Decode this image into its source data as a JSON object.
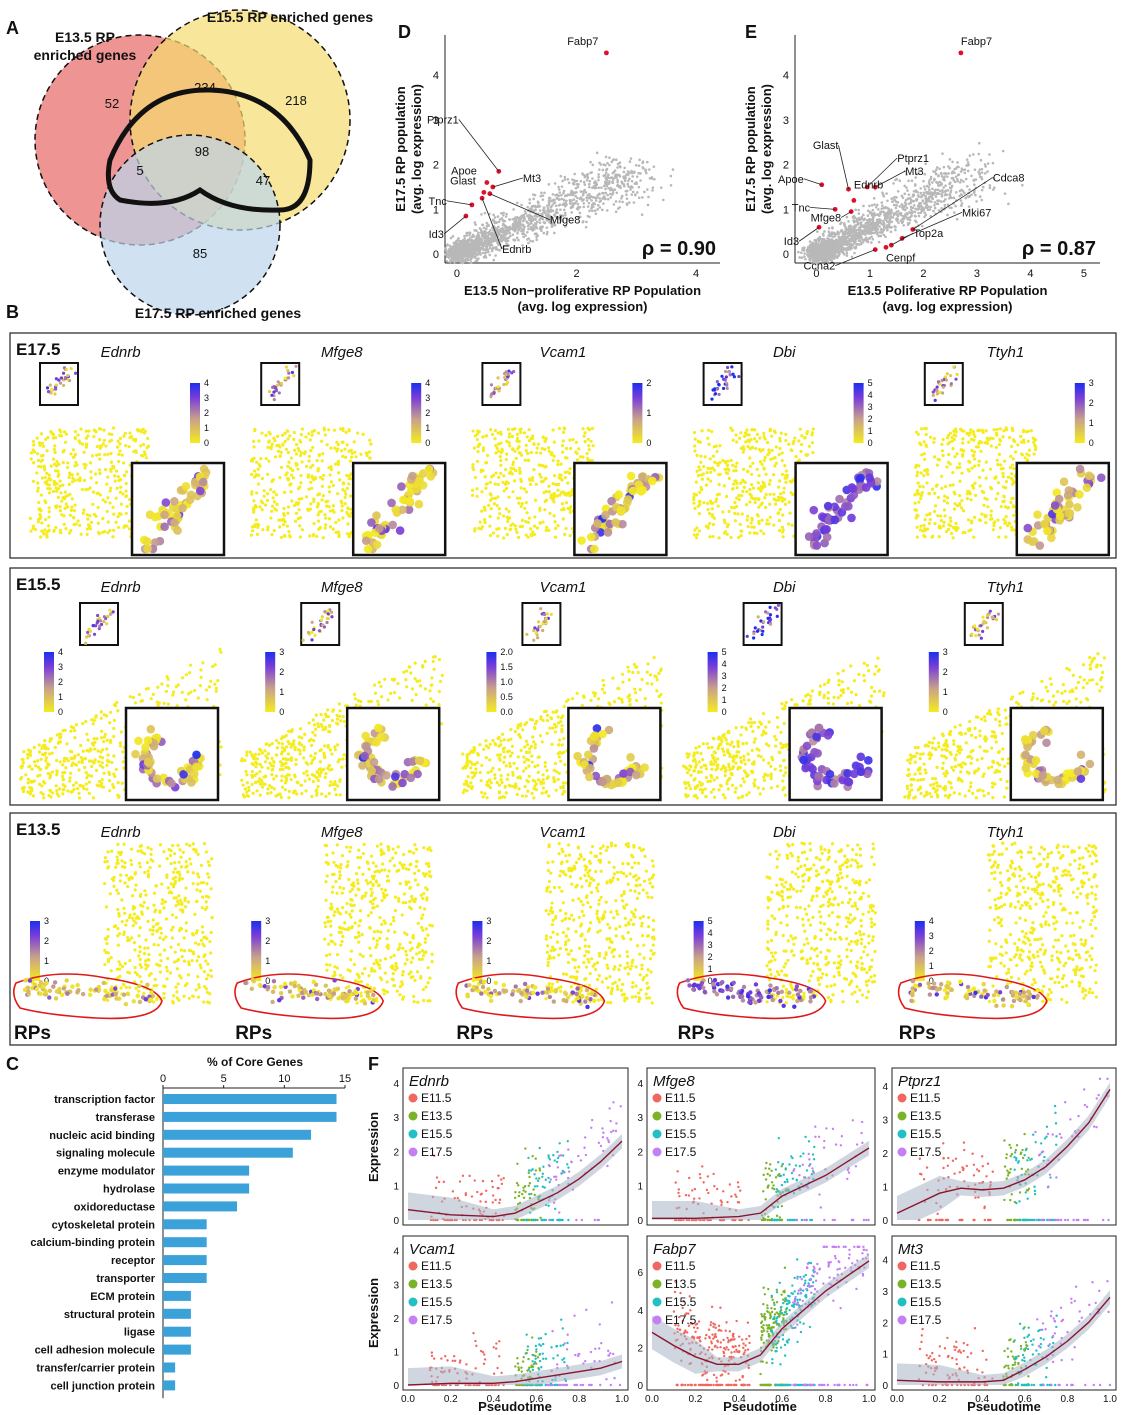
{
  "panel_letters": {
    "A": "A",
    "B": "B",
    "C": "C",
    "D": "D",
    "E": "E",
    "F": "F"
  },
  "colors": {
    "e13": "#e8706e",
    "e15": "#f5dc70",
    "e17": "#bcd6ec",
    "ring": "#111111",
    "bar": "#3aa2d8",
    "hi": "#e0102a",
    "low": "#f5ec1e",
    "mid": "#c8a08c",
    "high": "#7a3ed8",
    "top": "#1c2ef0",
    "rp_outline": "#e01818",
    "curve": "#8a1530",
    "band": "#a8b4c4",
    "gray": "#b8b8b8"
  },
  "venn": {
    "label_e13": "E13.5 RP\nenriched genes",
    "label_e15": "E15.5 RP enriched genes",
    "label_e17": "E17.5 RP enriched genes",
    "counts": {
      "e13_only": "52",
      "e13_e15": "234",
      "e15_only": "218",
      "core": "98",
      "e13_e17": "5",
      "e15_e17": "47",
      "e17_only": "85"
    }
  },
  "panel_b": {
    "rows": [
      {
        "stage": "E17.5",
        "genes": [
          "Ednrb",
          "Mfge8",
          "Vcam1",
          "Dbi",
          "Ttyh1"
        ],
        "scales": [
          [
            "4",
            "3",
            "2",
            "1",
            "0"
          ],
          [
            "4",
            "3",
            "2",
            "1",
            "0"
          ],
          [
            "2",
            "1",
            "0"
          ],
          [
            "5",
            "4",
            "3",
            "2",
            "1",
            "0"
          ],
          [
            "3",
            "2",
            "1",
            "0"
          ]
        ]
      },
      {
        "stage": "E15.5",
        "genes": [
          "Ednrb",
          "Mfge8",
          "Vcam1",
          "Dbi",
          "Ttyh1"
        ],
        "scales": [
          [
            "4",
            "3",
            "2",
            "1",
            "0"
          ],
          [
            "3",
            "2",
            "1",
            "0"
          ],
          [
            "2.0",
            "1.5",
            "1.0",
            "0.5",
            "0.0"
          ],
          [
            "5",
            "4",
            "3",
            "2",
            "1",
            "0"
          ],
          [
            "3",
            "2",
            "1",
            "0"
          ]
        ]
      },
      {
        "stage": "E13.5",
        "genes": [
          "Ednrb",
          "Mfge8",
          "Vcam1",
          "Dbi",
          "Ttyh1"
        ],
        "scales": [
          [
            "3",
            "2",
            "1",
            "0"
          ],
          [
            "3",
            "2",
            "1",
            "0"
          ],
          [
            "3",
            "2",
            "1",
            "0"
          ],
          [
            "5",
            "4",
            "3",
            "2",
            "1",
            "0"
          ],
          [
            "4",
            "3",
            "2",
            "1",
            "0"
          ]
        ],
        "rp_label": "RPs"
      }
    ]
  },
  "chart_data": [
    {
      "type": "bar",
      "panel": "C",
      "orientation": "horizontal",
      "title": "% of Core Genes",
      "categories": [
        "transcription factor",
        "transferase",
        "nucleic acid binding",
        "signaling molecule",
        "enzyme modulator",
        "hydrolase",
        "oxidoreductase",
        "cytoskeletal protein",
        "calcium-binding protein",
        "receptor",
        "transporter",
        "ECM protein",
        "structural protein",
        "ligase",
        "cell adhesion molecule",
        "transfer/carrier protein",
        "cell junction protein"
      ],
      "values": [
        14.3,
        14.3,
        12.2,
        10.7,
        7.1,
        7.1,
        6.1,
        3.6,
        3.6,
        3.6,
        3.6,
        2.3,
        2.3,
        2.3,
        2.3,
        1.0,
        1.0
      ],
      "xlim": [
        0,
        15
      ],
      "xticks": [
        "0",
        "5",
        "10",
        "15"
      ]
    },
    {
      "type": "scatter",
      "panel": "D",
      "rho": "ρ = 0.90",
      "xlabel": "E13.5 Non−proliferative RP Population\n(avg. log expression)",
      "ylabel": "E17.5 RP population\n(avg. log expression)",
      "xlim": [
        -0.2,
        4.4
      ],
      "ylim": [
        -0.2,
        4.9
      ],
      "xticks": [
        "0",
        "2",
        "4"
      ],
      "yticks": [
        "0",
        "1",
        "2",
        "3",
        "4"
      ],
      "labeled_points": [
        {
          "name": "Fabp7",
          "x": 2.5,
          "y": 4.5
        },
        {
          "name": "Ptprz1",
          "x": 0.7,
          "y": 1.85
        },
        {
          "name": "Apoe",
          "x": 0.5,
          "y": 1.6
        },
        {
          "name": "Mt3",
          "x": 0.6,
          "y": 1.5
        },
        {
          "name": "Glast",
          "x": 0.45,
          "y": 1.38
        },
        {
          "name": "Tnc",
          "x": 0.25,
          "y": 1.1
        },
        {
          "name": "Id3",
          "x": 0.15,
          "y": 0.85
        },
        {
          "name": "Mfge8",
          "x": 0.55,
          "y": 1.35
        },
        {
          "name": "Ednrb",
          "x": 0.42,
          "y": 1.25
        }
      ]
    },
    {
      "type": "scatter",
      "panel": "E",
      "rho": "ρ = 0.87",
      "xlabel": "E13.5 Poliferative RP Population\n(avg. log expression)",
      "ylabel": "E17.5 RP population\n(avg. log expression)",
      "xlim": [
        -0.4,
        5.3
      ],
      "ylim": [
        -0.2,
        4.9
      ],
      "xticks": [
        "0",
        "1",
        "2",
        "3",
        "4",
        "5"
      ],
      "yticks": [
        "0",
        "1",
        "2",
        "3",
        "4"
      ],
      "labeled_points": [
        {
          "name": "Fabp7",
          "x": 2.7,
          "y": 4.5
        },
        {
          "name": "Glast",
          "x": 0.6,
          "y": 1.45
        },
        {
          "name": "Ptprz1",
          "x": 0.95,
          "y": 1.5
        },
        {
          "name": "Apoe",
          "x": 0.1,
          "y": 1.55
        },
        {
          "name": "Mt3",
          "x": 1.1,
          "y": 1.5
        },
        {
          "name": "Ednrb",
          "x": 0.7,
          "y": 1.2
        },
        {
          "name": "Tnc",
          "x": 0.35,
          "y": 1.0
        },
        {
          "name": "Mfge8",
          "x": 0.65,
          "y": 0.95
        },
        {
          "name": "Id3",
          "x": 0.05,
          "y": 0.6
        },
        {
          "name": "Cdca8",
          "x": 1.8,
          "y": 0.55
        },
        {
          "name": "Mki67",
          "x": 1.6,
          "y": 0.35
        },
        {
          "name": "Top2a",
          "x": 1.4,
          "y": 0.2
        },
        {
          "name": "Cenpf",
          "x": 1.3,
          "y": 0.15
        },
        {
          "name": "Ccna2",
          "x": 1.1,
          "y": 0.1
        }
      ]
    },
    {
      "type": "scatter",
      "panel": "F",
      "xlabel": "Pseudotime",
      "ylabel": "Expression",
      "legend": [
        "E11.5",
        "E13.5",
        "E15.5",
        "E17.5"
      ],
      "legend_colors": [
        "#f0675f",
        "#7ab328",
        "#22bfc4",
        "#c57ff5"
      ],
      "xticks": [
        "0.0",
        "0.2",
        "0.4",
        "0.6",
        "0.8",
        "1.0"
      ],
      "subplots": [
        {
          "gene": "Ednrb",
          "yticks": [
            "0",
            "1",
            "2",
            "3",
            "4"
          ],
          "ymax": 4.2,
          "trend": [
            [
              0,
              0.3
            ],
            [
              0.2,
              0.15
            ],
            [
              0.4,
              0.1
            ],
            [
              0.5,
              0.2
            ],
            [
              0.6,
              0.5
            ],
            [
              0.7,
              0.8
            ],
            [
              0.8,
              1.2
            ],
            [
              0.9,
              1.7
            ],
            [
              1.0,
              2.3
            ]
          ]
        },
        {
          "gene": "Mfge8",
          "yticks": [
            "0",
            "1",
            "2",
            "3",
            "4"
          ],
          "ymax": 4.2,
          "trend": [
            [
              0,
              0.05
            ],
            [
              0.2,
              0.05
            ],
            [
              0.4,
              0.1
            ],
            [
              0.5,
              0.2
            ],
            [
              0.6,
              0.7
            ],
            [
              0.7,
              1.0
            ],
            [
              0.8,
              1.3
            ],
            [
              0.9,
              1.7
            ],
            [
              1.0,
              2.1
            ]
          ]
        },
        {
          "gene": "Ptprz1",
          "yticks": [
            "0",
            "1",
            "2",
            "3",
            "4"
          ],
          "ymax": 4.3,
          "trend": [
            [
              0,
              0.2
            ],
            [
              0.1,
              0.5
            ],
            [
              0.2,
              0.8
            ],
            [
              0.3,
              0.95
            ],
            [
              0.4,
              0.9
            ],
            [
              0.5,
              0.95
            ],
            [
              0.6,
              1.2
            ],
            [
              0.7,
              1.6
            ],
            [
              0.8,
              2.2
            ],
            [
              0.9,
              2.9
            ],
            [
              1.0,
              3.9
            ]
          ]
        },
        {
          "gene": "Vcam1",
          "yticks": [
            "0",
            "1",
            "2",
            "3",
            "4"
          ],
          "ymax": 4.2,
          "trend": [
            [
              0,
              0.0
            ],
            [
              0.2,
              0.05
            ],
            [
              0.4,
              0.05
            ],
            [
              0.5,
              0.1
            ],
            [
              0.6,
              0.2
            ],
            [
              0.7,
              0.3
            ],
            [
              0.8,
              0.4
            ],
            [
              0.9,
              0.5
            ],
            [
              1.0,
              0.7
            ]
          ]
        },
        {
          "gene": "Fabp7",
          "yticks": [
            "0",
            "2",
            "4",
            "6"
          ],
          "ymax": 7.5,
          "trend": [
            [
              0,
              2.8
            ],
            [
              0.1,
              2.1
            ],
            [
              0.2,
              1.5
            ],
            [
              0.3,
              1.1
            ],
            [
              0.4,
              1.1
            ],
            [
              0.5,
              1.6
            ],
            [
              0.6,
              3.0
            ],
            [
              0.7,
              4.0
            ],
            [
              0.8,
              5.0
            ],
            [
              0.9,
              5.8
            ],
            [
              1.0,
              6.6
            ]
          ]
        },
        {
          "gene": "Mt3",
          "yticks": [
            "0",
            "1",
            "2",
            "3",
            "4"
          ],
          "ymax": 4.5,
          "trend": [
            [
              0,
              0.15
            ],
            [
              0.2,
              0.1
            ],
            [
              0.4,
              0.1
            ],
            [
              0.5,
              0.15
            ],
            [
              0.6,
              0.5
            ],
            [
              0.7,
              0.9
            ],
            [
              0.8,
              1.4
            ],
            [
              0.9,
              2.0
            ],
            [
              1.0,
              2.8
            ]
          ]
        }
      ]
    }
  ]
}
